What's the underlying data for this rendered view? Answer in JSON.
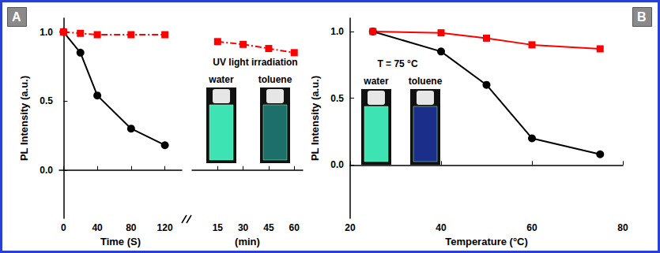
{
  "chart_data": [
    {
      "type": "line",
      "title": "A",
      "xlabel": "Time (S)",
      "ylabel": "PL Intensity (a.u.)",
      "x": [
        0,
        20,
        40,
        80,
        120
      ],
      "xlim": [
        -5,
        140
      ],
      "xticks": [
        0,
        40,
        80,
        120
      ],
      "ylim": [
        -0.35,
        1.1
      ],
      "yticks": [
        {
          "value": 0,
          "label": "0.0"
        },
        {
          "value": 0.5,
          "label": "0.5"
        },
        {
          "value": 1,
          "label": "1.0"
        }
      ],
      "series": [
        {
          "color": "#000000",
          "marker": "circle",
          "line_style": "solid",
          "values": [
            1.0,
            0.85,
            0.54,
            0.3,
            0.18
          ]
        },
        {
          "color": "#ff0000",
          "marker": "square",
          "line_style": "dashed",
          "values": [
            1.0,
            0.99,
            0.98,
            0.98,
            0.98
          ]
        }
      ]
    },
    {
      "type": "line",
      "xlabel": "(min)",
      "annotations": [
        "UV light irradiation",
        "water",
        "toluene"
      ],
      "x": [
        15,
        30,
        45,
        60
      ],
      "xlim": [
        0,
        65
      ],
      "xticks": [
        15,
        30,
        45,
        60
      ],
      "ylim": [
        -0.35,
        1.1
      ],
      "tick_labels": "x",
      "series": [
        {
          "color": "#ff0000",
          "marker": "square",
          "line_style": "dashed",
          "values": [
            0.93,
            0.91,
            0.88,
            0.85
          ]
        }
      ]
    },
    {
      "type": "line",
      "title": "B",
      "xlabel": "Temperature (°C)",
      "ylabel": "PL Intensity (a.u.)",
      "annotations": [
        "T = 75 °C",
        "water",
        "toluene"
      ],
      "x": [
        25,
        40,
        50,
        60,
        75
      ],
      "xlim": [
        20,
        80
      ],
      "xticks": [
        20,
        40,
        60,
        80
      ],
      "ylim": [
        -0.4,
        1.1
      ],
      "yticks": [
        {
          "value": 0,
          "label": "0.0"
        },
        {
          "value": 0.5,
          "label": "0.5"
        },
        {
          "value": 1,
          "label": "1.0"
        }
      ],
      "series": [
        {
          "color": "#000000",
          "marker": "circle",
          "line_style": "solid",
          "values": [
            1.0,
            0.85,
            0.6,
            0.2,
            0.08
          ]
        },
        {
          "color": "#ff0000",
          "marker": "square",
          "line_style": "solid",
          "values": [
            1.0,
            0.99,
            0.95,
            0.9,
            0.87
          ]
        }
      ]
    }
  ]
}
